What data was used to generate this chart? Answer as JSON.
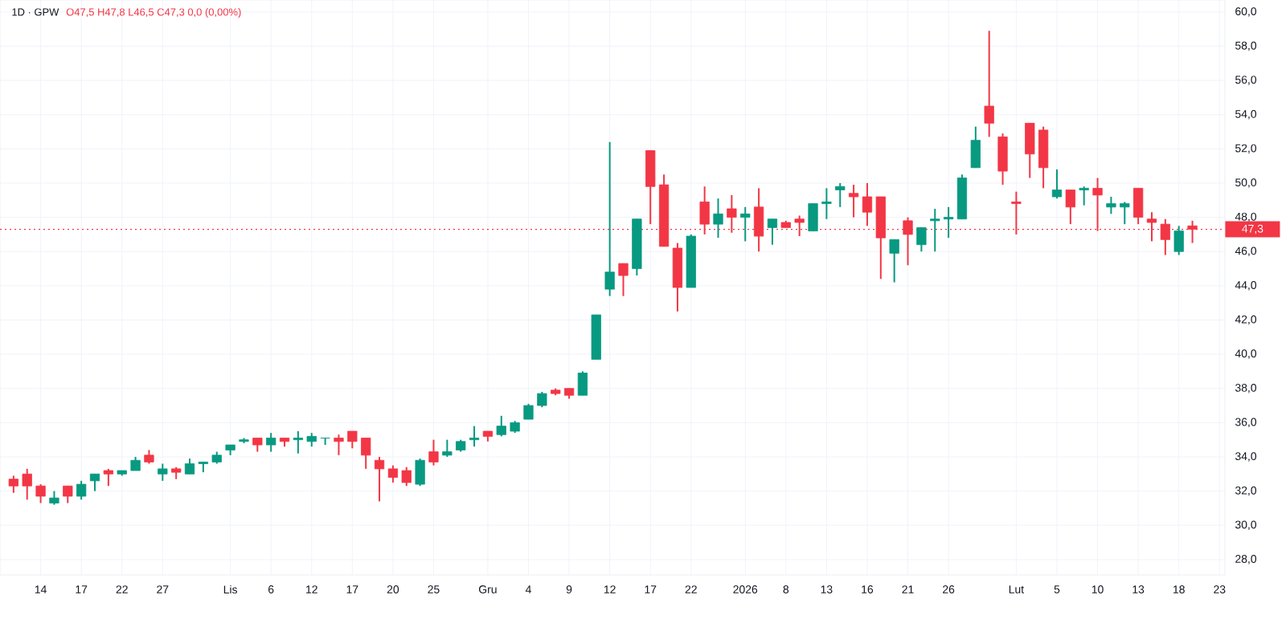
{
  "chart_data": {
    "type": "candlestick",
    "title": "1D · GPW",
    "subtitle": "O47,5 H47,8 L46,5 C47,3 0,0 (0,00%)",
    "categories": [
      null,
      null,
      "14",
      null,
      null,
      "17",
      null,
      null,
      "22",
      null,
      null,
      "27",
      null,
      null,
      null,
      null,
      "Lis",
      null,
      null,
      "6",
      null,
      null,
      "12",
      null,
      null,
      "17",
      null,
      null,
      "20",
      null,
      null,
      "25",
      null,
      null,
      null,
      "Gru",
      null,
      null,
      "4",
      null,
      null,
      "9",
      null,
      null,
      "12",
      null,
      null,
      "17",
      null,
      null,
      "22",
      null,
      null,
      null,
      "2026",
      null,
      null,
      "8",
      null,
      null,
      "13",
      null,
      null,
      "16",
      null,
      null,
      "21",
      null,
      null,
      "26",
      null,
      null,
      null,
      null,
      "Lut",
      null,
      null,
      "5",
      null,
      null,
      "10",
      null,
      null,
      "13",
      null,
      null,
      "18",
      null,
      null,
      "23"
    ],
    "ohlc": [
      [
        32.7,
        32.9,
        31.9,
        32.3
      ],
      [
        33.0,
        33.3,
        31.5,
        32.3
      ],
      [
        32.3,
        32.4,
        31.3,
        31.7
      ],
      [
        31.3,
        32.0,
        31.2,
        31.6
      ],
      [
        32.3,
        32.3,
        31.3,
        31.7
      ],
      [
        31.7,
        32.6,
        31.5,
        32.4
      ],
      [
        32.6,
        33.0,
        32.0,
        33.0
      ],
      [
        33.2,
        33.3,
        32.3,
        33.0
      ],
      [
        33.0,
        33.2,
        32.9,
        33.2
      ],
      [
        33.2,
        34.0,
        33.2,
        33.8
      ],
      [
        34.1,
        34.4,
        33.6,
        33.7
      ],
      [
        33.0,
        33.6,
        32.6,
        33.3
      ],
      [
        33.3,
        33.4,
        32.7,
        33.1
      ],
      [
        33.0,
        33.9,
        33.0,
        33.6
      ],
      [
        33.6,
        33.7,
        33.1,
        33.7
      ],
      [
        33.7,
        34.3,
        33.6,
        34.1
      ],
      [
        34.4,
        34.7,
        34.1,
        34.7
      ],
      [
        34.9,
        35.1,
        34.8,
        35.0
      ],
      [
        35.1,
        35.1,
        34.3,
        34.7
      ],
      [
        34.7,
        35.4,
        34.3,
        35.1
      ],
      [
        35.1,
        35.1,
        34.6,
        34.9
      ],
      [
        35.0,
        35.5,
        34.2,
        35.1
      ],
      [
        34.9,
        35.4,
        34.6,
        35.2
      ],
      [
        35.1,
        35.1,
        34.7,
        35.1
      ],
      [
        35.1,
        35.3,
        34.1,
        34.9
      ],
      [
        35.5,
        35.5,
        34.5,
        34.9
      ],
      [
        35.1,
        35.1,
        33.3,
        34.1
      ],
      [
        33.8,
        34.0,
        31.4,
        33.3
      ],
      [
        33.3,
        33.5,
        32.5,
        32.8
      ],
      [
        33.2,
        33.4,
        32.3,
        32.5
      ],
      [
        32.4,
        33.9,
        32.3,
        33.8
      ],
      [
        34.3,
        35.0,
        33.5,
        33.7
      ],
      [
        34.1,
        35.0,
        34.0,
        34.3
      ],
      [
        34.4,
        35.0,
        34.3,
        34.9
      ],
      [
        35.0,
        35.8,
        34.6,
        35.1
      ],
      [
        35.5,
        35.5,
        34.9,
        35.2
      ],
      [
        35.3,
        36.4,
        35.2,
        35.8
      ],
      [
        35.5,
        36.1,
        35.4,
        36.0
      ],
      [
        36.2,
        37.1,
        36.2,
        37.0
      ],
      [
        37.0,
        37.8,
        36.9,
        37.7
      ],
      [
        37.9,
        38.0,
        37.6,
        37.7
      ],
      [
        38.0,
        38.0,
        37.4,
        37.6
      ],
      [
        37.6,
        39.0,
        37.6,
        38.9
      ],
      [
        39.7,
        42.3,
        39.7,
        42.3
      ],
      [
        43.8,
        52.4,
        43.4,
        44.8
      ],
      [
        45.3,
        45.3,
        43.4,
        44.6
      ],
      [
        45.0,
        47.9,
        44.6,
        47.9
      ],
      [
        51.9,
        51.9,
        47.6,
        49.8
      ],
      [
        49.9,
        50.5,
        46.3,
        46.3
      ],
      [
        46.2,
        46.5,
        42.5,
        43.9
      ],
      [
        43.9,
        47.0,
        43.9,
        46.9
      ],
      [
        48.9,
        49.8,
        47.0,
        47.6
      ],
      [
        47.6,
        49.1,
        46.8,
        48.2
      ],
      [
        48.5,
        49.3,
        47.1,
        48.0
      ],
      [
        48.0,
        48.6,
        46.6,
        48.2
      ],
      [
        48.6,
        49.7,
        46.0,
        46.9
      ],
      [
        47.4,
        47.9,
        46.4,
        47.9
      ],
      [
        47.7,
        47.8,
        47.4,
        47.4
      ],
      [
        47.9,
        48.1,
        46.9,
        47.7
      ],
      [
        47.2,
        48.8,
        47.2,
        48.8
      ],
      [
        48.8,
        49.7,
        47.9,
        48.9
      ],
      [
        49.6,
        50.0,
        48.6,
        49.8
      ],
      [
        49.4,
        49.9,
        48.0,
        49.2
      ],
      [
        49.2,
        50.0,
        47.5,
        48.3
      ],
      [
        49.2,
        49.2,
        44.4,
        46.8
      ],
      [
        45.9,
        46.7,
        44.2,
        46.7
      ],
      [
        47.8,
        48.0,
        45.2,
        47.0
      ],
      [
        46.4,
        47.4,
        46.0,
        47.4
      ],
      [
        47.8,
        48.5,
        46.0,
        47.9
      ],
      [
        47.9,
        48.6,
        46.8,
        48.0
      ],
      [
        47.9,
        50.5,
        47.9,
        50.3
      ],
      [
        50.9,
        53.3,
        50.9,
        52.5
      ],
      [
        54.5,
        58.9,
        52.7,
        53.5
      ],
      [
        52.7,
        52.9,
        49.9,
        50.7
      ],
      [
        48.9,
        49.5,
        47.0,
        48.8
      ],
      [
        53.5,
        53.5,
        50.3,
        51.7
      ],
      [
        53.1,
        53.3,
        49.7,
        50.9
      ],
      [
        49.2,
        50.8,
        49.1,
        49.6
      ],
      [
        49.6,
        49.6,
        47.6,
        48.6
      ],
      [
        49.6,
        49.8,
        48.7,
        49.7
      ],
      [
        49.7,
        50.3,
        47.2,
        49.3
      ],
      [
        48.6,
        49.2,
        48.2,
        48.8
      ],
      [
        48.6,
        48.9,
        47.6,
        48.8
      ],
      [
        49.7,
        49.7,
        47.6,
        48.0
      ],
      [
        47.9,
        48.3,
        46.6,
        47.7
      ],
      [
        47.6,
        47.9,
        45.8,
        46.7
      ],
      [
        46.0,
        47.5,
        45.8,
        47.2
      ],
      [
        47.5,
        47.8,
        46.5,
        47.3
      ],
      null,
      null
    ],
    "colors": [
      "#f23645",
      "#f23645",
      "#f23645",
      "#089981",
      "#f23645",
      "#089981",
      "#089981",
      "#f23645",
      "#089981",
      "#089981",
      "#f23645",
      "#089981",
      "#f23645",
      "#089981",
      "#089981",
      "#089981",
      "#089981",
      "#089981",
      "#f23645",
      "#089981",
      "#f23645",
      "#089981",
      "#089981",
      "#089981",
      "#f23645",
      "#f23645",
      "#f23645",
      "#f23645",
      "#f23645",
      "#f23645",
      "#089981",
      "#f23645",
      "#089981",
      "#089981",
      "#089981",
      "#f23645",
      "#089981",
      "#089981",
      "#089981",
      "#089981",
      "#f23645",
      "#f23645",
      "#089981",
      "#089981",
      "#089981",
      "#f23645",
      "#089981",
      "#f23645",
      "#f23645",
      "#f23645",
      "#089981",
      "#f23645",
      "#089981",
      "#f23645",
      "#089981",
      "#f23645",
      "#089981",
      "#f23645",
      "#f23645",
      "#089981",
      "#089981",
      "#089981",
      "#f23645",
      "#f23645",
      "#f23645",
      "#089981",
      "#f23645",
      "#089981",
      "#089981",
      "#089981",
      "#089981",
      "#089981",
      "#f23645",
      "#f23645",
      "#f23645",
      "#f23645",
      "#f23645",
      "#089981",
      "#f23645",
      "#089981",
      "#f23645",
      "#089981",
      "#089981",
      "#f23645",
      "#f23645",
      "#f23645",
      "#089981",
      "#f23645",
      null,
      null
    ],
    "ylim": [
      27.1,
      60.7
    ],
    "yticks": [
      {
        "value": 28,
        "label": "28,0"
      },
      {
        "value": 30,
        "label": "30,0"
      },
      {
        "value": 32,
        "label": "32,0"
      },
      {
        "value": 34,
        "label": "34,0"
      },
      {
        "value": 36,
        "label": "36,0"
      },
      {
        "value": 38,
        "label": "38,0"
      },
      {
        "value": 40,
        "label": "40,0"
      },
      {
        "value": 42,
        "label": "42,0"
      },
      {
        "value": 44,
        "label": "44,0"
      },
      {
        "value": 46,
        "label": "46,0"
      },
      {
        "value": 48,
        "label": "48,0"
      },
      {
        "value": 50,
        "label": "50,0"
      },
      {
        "value": 52,
        "label": "52,0"
      },
      {
        "value": 54,
        "label": "54,0"
      },
      {
        "value": 56,
        "label": "56,0"
      },
      {
        "value": 58,
        "label": "58,0"
      },
      {
        "value": 60,
        "label": "60,0"
      }
    ],
    "ref_lines": [
      {
        "axis": "y",
        "value": 47.3,
        "label": "47,3",
        "color": "#f23645",
        "line_style": "dotted"
      }
    ],
    "grid": true
  }
}
